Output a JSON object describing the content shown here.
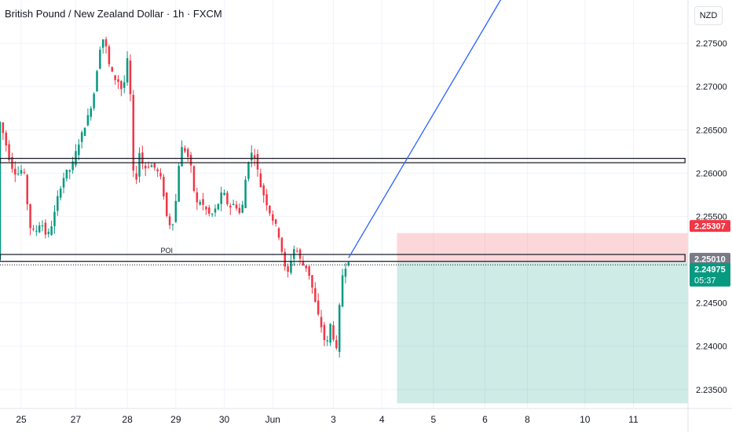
{
  "header": {
    "title": "British Pound / New Zealand Dollar · 1h · FXCM",
    "currency": "NZD"
  },
  "chart_data": {
    "type": "candlestick",
    "title": "British Pound / New Zealand Dollar · 1h · FXCM",
    "ylim": [
      2.2328,
      2.28
    ],
    "y_ticks": [
      "2.27500",
      "2.27000",
      "2.26500",
      "2.26000",
      "2.25500",
      "2.24500",
      "2.24000",
      "2.23500"
    ],
    "y_tick_values": [
      2.275,
      2.27,
      2.265,
      2.26,
      2.255,
      2.245,
      2.24,
      2.235
    ],
    "x_ticks": [
      "25",
      "27",
      "28",
      "29",
      "30",
      "Jun",
      "3",
      "4",
      "5",
      "6",
      "8",
      "10",
      "11"
    ],
    "x_tick_index": [
      7,
      25,
      42,
      58,
      74,
      90,
      110,
      126,
      143,
      160,
      174,
      193,
      209
    ],
    "x_index_range": [
      0,
      227
    ],
    "price_labels": [
      {
        "value": "2.25307",
        "price": 2.25307,
        "color": "#f23645"
      },
      {
        "value": "2.25010",
        "price": 2.2501,
        "color": "#787b86"
      },
      {
        "value": "2.24975",
        "price": 2.24975,
        "color": "#089981",
        "countdown": "05:37"
      }
    ],
    "zones": [
      {
        "name": "resistance-zone",
        "top": 2.2617,
        "bottom": 2.2612,
        "from": 0,
        "to": 226
      },
      {
        "name": "poi-zone",
        "top": 2.2506,
        "bottom": 2.2498,
        "from": 0,
        "to": 226,
        "label": "POI"
      }
    ],
    "position": {
      "entry": 2.2497,
      "stop": 2.25307,
      "target": 2.2334,
      "from": 131,
      "to": 227
    },
    "trend_line": {
      "from": [
        115,
        2.2502
      ],
      "to": [
        166,
        2.2805
      ]
    },
    "colors": {
      "up": "#089981",
      "down": "#f23645",
      "trend": "#2962ff"
    }
  }
}
